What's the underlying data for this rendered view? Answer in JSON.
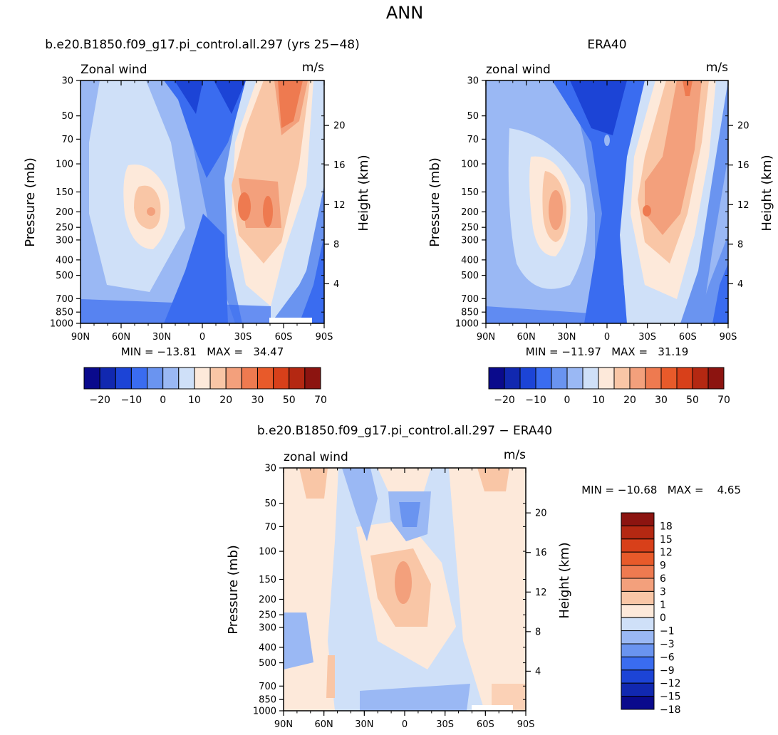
{
  "figure": {
    "title": "ANN",
    "colors": {
      "full": [
        "#0a0a8c",
        "#1128b0",
        "#1c44d6",
        "#3a6cf0",
        "#6a94f0",
        "#9ab8f4",
        "#cfe0f8",
        "#fde9da",
        "#f9c6a6",
        "#f3a07c",
        "#ee7a50",
        "#e85a2a",
        "#d8401a",
        "#b42812",
        "#8c1410"
      ],
      "diff": [
        "#0a0a8c",
        "#1128b0",
        "#1c44d6",
        "#3a6cf0",
        "#6a94f0",
        "#9ab8f4",
        "#cfe0f8",
        "#fde9da",
        "#f9c6a6",
        "#f3a07c",
        "#ee7a50",
        "#e85a2a",
        "#d8401a",
        "#b42812",
        "#8c1410"
      ]
    }
  },
  "chart_data": [
    {
      "type": "heatmap",
      "title": "b.e20.B1850.f09_g17.pi_control.all.297 (yrs 25−48)",
      "left_label": "Zonal wind",
      "right_label": "m/s",
      "xlabel": "",
      "ylabel": "Pressure (mb)",
      "y2label": "Height (km)",
      "x_ticks": [
        "90N",
        "60N",
        "30N",
        "0",
        "30S",
        "60S",
        "90S"
      ],
      "y_ticks": [
        "30",
        "50",
        "70",
        "100",
        "150",
        "200",
        "250",
        "300",
        "400",
        "500",
        "700",
        "850",
        "1000"
      ],
      "y2_ticks": [
        "20",
        "16",
        "12",
        "8",
        "4"
      ],
      "stats": "MIN = −13.81   MAX =   34.47",
      "colorbar_labels": [
        "−20",
        "−10",
        "0",
        "10",
        "20",
        "30",
        "50",
        "70"
      ],
      "ylim": [
        1000,
        30
      ],
      "xlim": [
        90,
        -90
      ],
      "scale": "log-pressure"
    },
    {
      "type": "heatmap",
      "title": "ERA40",
      "left_label": "zonal wind",
      "right_label": "m/s",
      "xlabel": "",
      "ylabel": "Pressure (mb)",
      "y2label": "Height (km)",
      "x_ticks": [
        "90N",
        "60N",
        "30N",
        "0",
        "30S",
        "60S",
        "90S"
      ],
      "y_ticks": [
        "30",
        "50",
        "70",
        "100",
        "150",
        "200",
        "250",
        "300",
        "400",
        "500",
        "700",
        "850",
        "1000"
      ],
      "y2_ticks": [
        "20",
        "16",
        "12",
        "8",
        "4"
      ],
      "stats": "MIN = −11.97   MAX =   31.19",
      "colorbar_labels": [
        "−20",
        "−10",
        "0",
        "10",
        "20",
        "30",
        "50",
        "70"
      ],
      "ylim": [
        1000,
        30
      ],
      "xlim": [
        90,
        -90
      ],
      "scale": "log-pressure"
    },
    {
      "type": "heatmap",
      "title": "b.e20.B1850.f09_g17.pi_control.all.297 − ERA40",
      "left_label": "zonal wind",
      "right_label": "m/s",
      "xlabel": "",
      "ylabel": "Pressure (mb)",
      "y2label": "Height (km)",
      "x_ticks": [
        "90N",
        "60N",
        "30N",
        "0",
        "30S",
        "60S",
        "90S"
      ],
      "y_ticks": [
        "30",
        "50",
        "70",
        "100",
        "150",
        "200",
        "250",
        "300",
        "400",
        "500",
        "700",
        "850",
        "1000"
      ],
      "y2_ticks": [
        "20",
        "16",
        "12",
        "8",
        "4"
      ],
      "stats": "MIN = −10.68   MAX =    4.65",
      "colorbar_labels": [
        "18",
        "15",
        "12",
        "9",
        "6",
        "3",
        "1",
        "0",
        "−1",
        "−3",
        "−6",
        "−9",
        "−12",
        "−15",
        "−18"
      ],
      "ylim": [
        1000,
        30
      ],
      "xlim": [
        90,
        -90
      ],
      "scale": "log-pressure"
    }
  ]
}
